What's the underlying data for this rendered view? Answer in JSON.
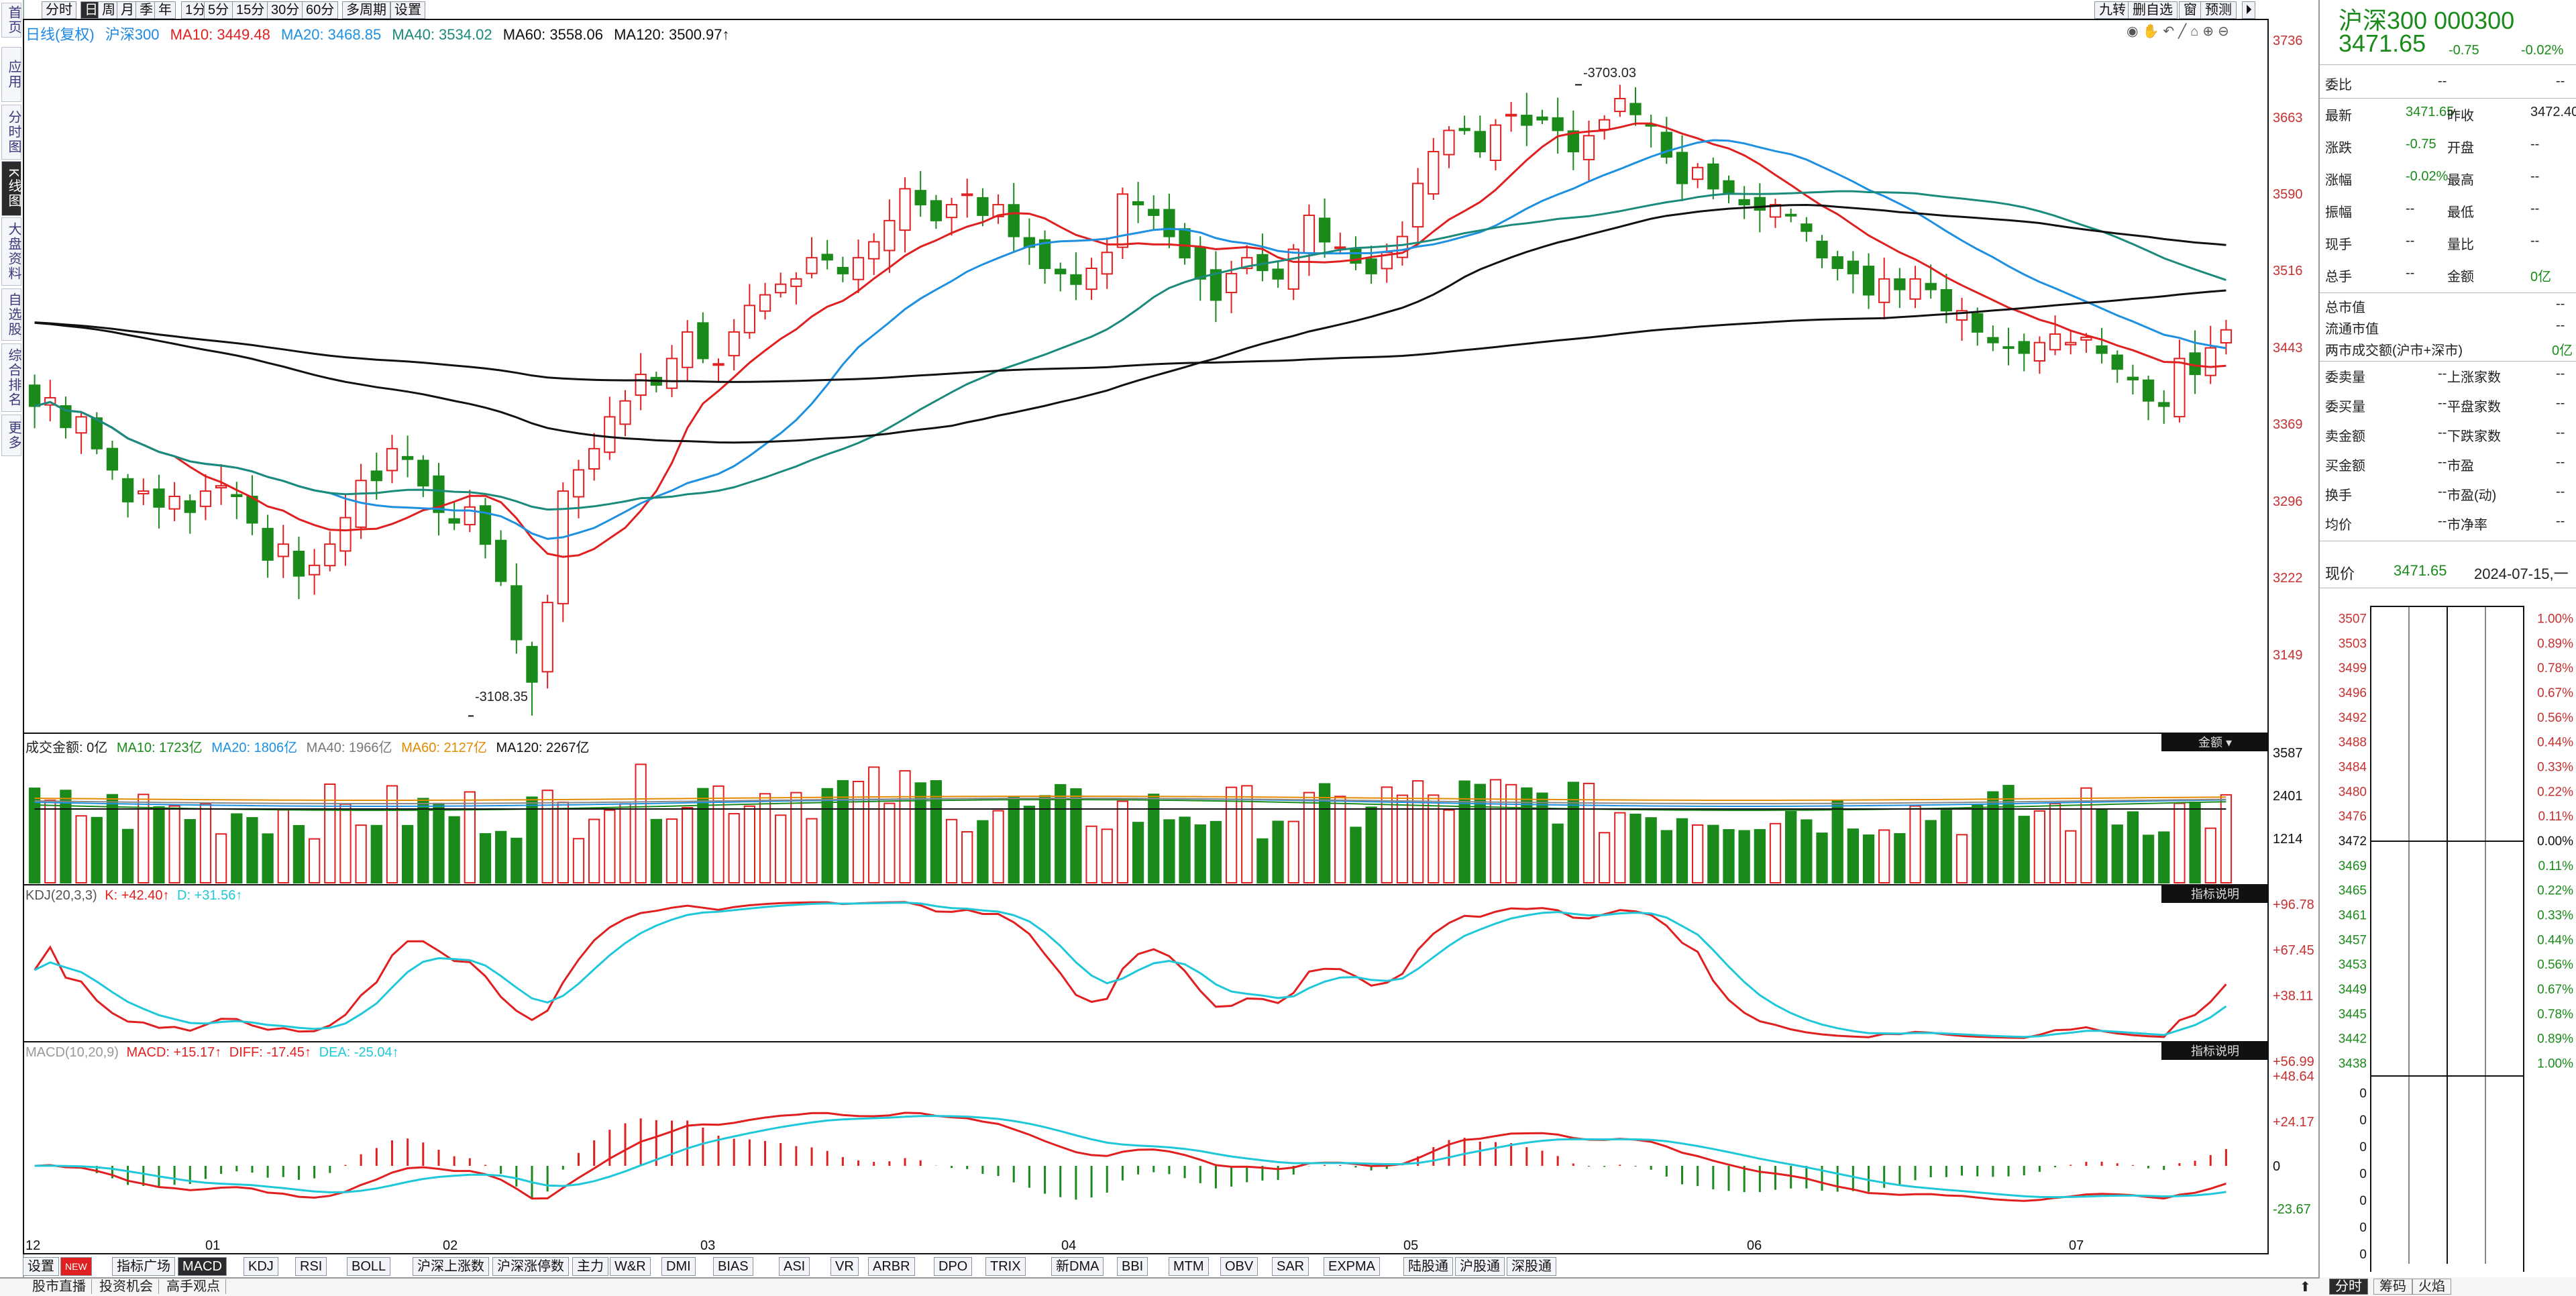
{
  "leftnav": [
    "首页",
    "应用",
    "分时图",
    "K线图",
    "大盘资料",
    "自选股",
    "综合排名",
    "更多"
  ],
  "periods": [
    "分时",
    "日",
    "周",
    "月",
    "季",
    "年",
    "1分",
    "5分",
    "15分",
    "30分",
    "60分",
    "多周期",
    "设置"
  ],
  "period_active": 1,
  "topright_buttons": [
    "九转",
    "删自选",
    "窗",
    "预测"
  ],
  "main_header": {
    "title": "日线(复权)",
    "name": "沪深300",
    "ma10": "MA10: 3449.48",
    "ma20": "MA20: 3468.85",
    "ma40": "MA40: 3534.02",
    "ma60": "MA60: 3558.06",
    "ma120": "MA120: 3500.97↑"
  },
  "vol_header": {
    "label": "成交金额: 0亿",
    "ma10": "MA10: 1723亿",
    "ma20": "MA20: 1806亿",
    "ma40": "MA40: 1966亿",
    "ma60": "MA60: 2127亿",
    "ma120": "MA120: 2267亿",
    "tag": "金额"
  },
  "kdj_header": {
    "label": "KDJ(20,3,3)",
    "k": "K: +42.40↑",
    "d": "D: +31.56↑",
    "tag": "指标说明"
  },
  "macd_header": {
    "label": "MACD(10,20,9)",
    "macd": "MACD: +15.17↑",
    "diff": "DIFF: -17.45↑",
    "dea": "DEA: -25.04↑",
    "tag": "指标说明"
  },
  "annotations": {
    "high": "3703.03",
    "low": "3108.35"
  },
  "price_axis": [
    "3736",
    "3663",
    "3590",
    "3516",
    "3443",
    "3369",
    "3296",
    "3222",
    "3149"
  ],
  "vol_axis": [
    "3587",
    "2401",
    "1214"
  ],
  "kdj_axis": [
    "+96.78",
    "+67.45",
    "+38.11"
  ],
  "macd_axis": [
    "+56.99",
    "+48.64",
    "+24.17",
    "0",
    "-23.67"
  ],
  "x_axis": [
    "12",
    "01",
    "02",
    "03",
    "04",
    "05",
    "06",
    "07"
  ],
  "bottom_tabs": [
    "设置",
    "NEW",
    "指标广场",
    "MACD",
    "KDJ",
    "RSI",
    "BOLL",
    "沪深上涨数",
    "沪深涨停数",
    "主力",
    "W&R",
    "DMI",
    "BIAS",
    "ASI",
    "VR",
    "ARBR",
    "DPO",
    "TRIX",
    "新DMA",
    "BBI",
    "MTM",
    "OBV",
    "SAR",
    "EXPMA",
    "陆股通",
    "沪股通",
    "深股通"
  ],
  "bottom_tab_active": 3,
  "statusbar": [
    "股市直播",
    "投资机会",
    "高手观点"
  ],
  "quote": {
    "name": "沪深300 000300",
    "price": "3471.65",
    "change": "-0.75",
    "pct": "-0.02%",
    "weibi_label": "委比",
    "weibi": "--",
    "weicha": "--",
    "rows": [
      {
        "l1": "最新",
        "v1": "3471.65",
        "l2": "昨收",
        "v2": "3472.40"
      },
      {
        "l1": "涨跌",
        "v1": "-0.75",
        "l2": "开盘",
        "v2": "--"
      },
      {
        "l1": "涨幅",
        "v1": "-0.02%",
        "l2": "最高",
        "v2": "--"
      },
      {
        "l1": "振幅",
        "v1": "--",
        "l2": "最低",
        "v2": "--"
      },
      {
        "l1": "现手",
        "v1": "--",
        "l2": "量比",
        "v2": "--"
      },
      {
        "l1": "总手",
        "v1": "--",
        "l2": "金额",
        "v2": "0亿"
      }
    ],
    "mktcap_label": "总市值",
    "mktcap": "--",
    "float_label": "流通市值",
    "float": "--",
    "two_mkt_label": "两市成交额(沪市+深市)",
    "two_mkt": "0亿",
    "rows2": [
      {
        "l1": "委卖量",
        "v1": "--",
        "l2": "上涨家数",
        "v2": "--"
      },
      {
        "l1": "委买量",
        "v1": "--",
        "l2": "平盘家数",
        "v2": "--"
      },
      {
        "l1": "卖金额",
        "v1": "--",
        "l2": "下跌家数",
        "v2": "--"
      },
      {
        "l1": "买金额",
        "v1": "--",
        "l2": "市盈",
        "v2": "--"
      },
      {
        "l1": "换手",
        "v1": "--",
        "l2": "市盈(动)",
        "v2": "--"
      },
      {
        "l1": "均价",
        "v1": "--",
        "l2": "市净率",
        "v2": "--"
      }
    ],
    "now_label": "现价",
    "now": "3471.65",
    "date": "2024-07-15,一"
  },
  "intraday_axis": {
    "up_prices": [
      "3507",
      "3503",
      "3499",
      "3496",
      "3492",
      "3488",
      "3484",
      "3480",
      "3476"
    ],
    "mid_price": "3472",
    "down_prices": [
      "3469",
      "3465",
      "3461",
      "3457",
      "3453",
      "3449",
      "3445",
      "3442",
      "3438"
    ],
    "up_pcts": [
      "1.00%",
      "0.89%",
      "0.78%",
      "0.67%",
      "0.56%",
      "0.44%",
      "0.33%",
      "0.22%",
      "0.11%"
    ],
    "mid_pct": "0.00%",
    "down_pcts": [
      "0.11%",
      "0.22%",
      "0.33%",
      "0.44%",
      "0.56%",
      "0.67%",
      "0.78%",
      "0.89%",
      "1.00%"
    ],
    "vol_zero": "0"
  },
  "right_bottom_tabs": [
    "分时",
    "筹码",
    "火焰"
  ],
  "colors": {
    "up": "#e02020",
    "down": "#1a8a1a",
    "ma10": "#e02020",
    "ma20": "#1e90e0",
    "ma40": "#1a8a7a",
    "ma60": "#111111",
    "ma120": "#111111",
    "k": "#e02020",
    "d": "#1ec8d8"
  },
  "chart_data": {
    "type": "candlestick",
    "x_ticks": [
      "12",
      "01",
      "02",
      "03",
      "04",
      "05",
      "06",
      "07"
    ],
    "price_range": [
      3100,
      3745
    ],
    "closes": [
      3400,
      3408,
      3380,
      3390,
      3360,
      3340,
      3310,
      3320,
      3305,
      3315,
      3300,
      3320,
      3325,
      3315,
      3290,
      3255,
      3270,
      3240,
      3250,
      3270,
      3295,
      3330,
      3330,
      3360,
      3350,
      3325,
      3300,
      3290,
      3305,
      3270,
      3235,
      3180,
      3140,
      3215,
      3320,
      3340,
      3360,
      3390,
      3405,
      3430,
      3420,
      3445,
      3470,
      3445,
      3440,
      3470,
      3495,
      3505,
      3515,
      3520,
      3540,
      3538,
      3525,
      3540,
      3555,
      3575,
      3605,
      3590,
      3575,
      3590,
      3600,
      3580,
      3590,
      3560,
      3550,
      3530,
      3525,
      3515,
      3530,
      3545,
      3600,
      3590,
      3580,
      3560,
      3540,
      3520,
      3500,
      3525,
      3540,
      3528,
      3520,
      3548,
      3580,
      3555,
      3550,
      3535,
      3525,
      3545,
      3560,
      3610,
      3640,
      3660,
      3660,
      3640,
      3665,
      3675,
      3665,
      3670,
      3660,
      3640,
      3655,
      3670,
      3690,
      3675,
      3665,
      3635,
      3610,
      3625,
      3605,
      3600,
      3590,
      3585,
      3590,
      3580,
      3565,
      3540,
      3530,
      3525,
      3505,
      3520,
      3510,
      3520,
      3510,
      3490,
      3490,
      3470,
      3460,
      3455,
      3450,
      3460,
      3468,
      3460,
      3465,
      3450,
      3435,
      3425,
      3405,
      3400,
      3445,
      3430,
      3455,
      3472
    ],
    "ma_last": {
      "MA10": 3449.48,
      "MA20": 3468.85,
      "MA40": 3534.02,
      "MA60": 3558.06,
      "MA120": 3500.97
    },
    "high": 3703.03,
    "low": 3108.35
  }
}
